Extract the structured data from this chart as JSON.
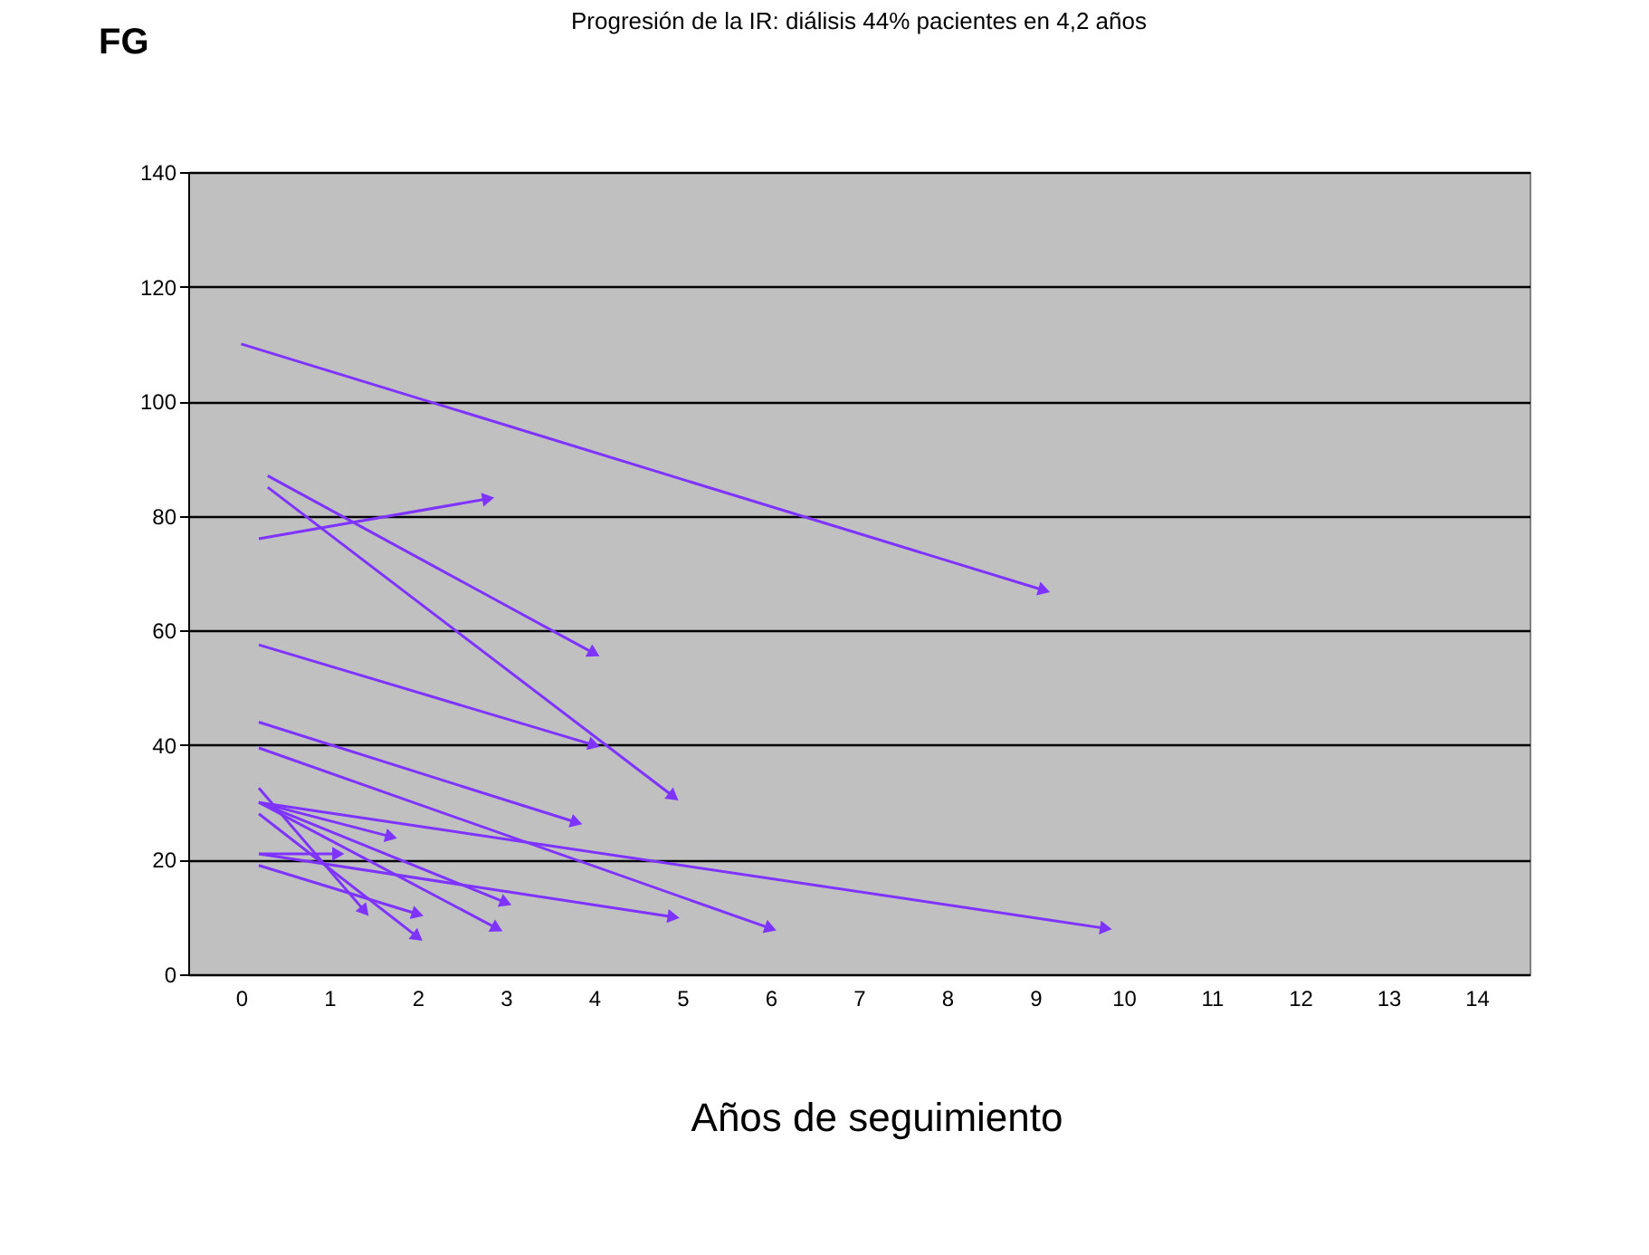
{
  "chart_data": {
    "type": "line",
    "title": "Progresión de la IR: diálisis 44% pacientes en 4,2 años",
    "ylabel": "FG",
    "xlabel": "Años de seguimiento",
    "xlim": [
      -0.6,
      14.6
    ],
    "xticks": [
      0,
      1,
      2,
      3,
      4,
      5,
      6,
      7,
      8,
      9,
      10,
      11,
      12,
      13,
      14
    ],
    "ylim": [
      0,
      140
    ],
    "yticks": [
      0,
      20,
      40,
      60,
      80,
      100,
      120,
      140
    ],
    "grid": "y",
    "legend": false,
    "marker": "triangle",
    "series": [
      {
        "color": "#7f33ff",
        "x": [
          0,
          9.1
        ],
        "values": [
          110,
          67
        ]
      },
      {
        "color": "#7f33ff",
        "x": [
          0.2,
          2.8
        ],
        "values": [
          76,
          83
        ]
      },
      {
        "color": "#7f33ff",
        "x": [
          0.3,
          4.0
        ],
        "values": [
          87,
          56
        ]
      },
      {
        "color": "#7f33ff",
        "x": [
          0.3,
          4.9
        ],
        "values": [
          85,
          31
        ]
      },
      {
        "color": "#7f33ff",
        "x": [
          0.2,
          4.0
        ],
        "values": [
          57.5,
          40
        ]
      },
      {
        "color": "#7f33ff",
        "x": [
          0.2,
          3.8
        ],
        "values": [
          44,
          26.5
        ]
      },
      {
        "color": "#7f33ff",
        "x": [
          0.2,
          6.0
        ],
        "values": [
          39.5,
          8
        ]
      },
      {
        "color": "#7f33ff",
        "x": [
          0.2,
          9.8
        ],
        "values": [
          30,
          8
        ]
      },
      {
        "color": "#7f33ff",
        "x": [
          0.2,
          1.7
        ],
        "values": [
          30,
          24
        ]
      },
      {
        "color": "#7f33ff",
        "x": [
          0.2,
          1.4
        ],
        "values": [
          32.5,
          11
        ]
      },
      {
        "color": "#7f33ff",
        "x": [
          0.2,
          2.0
        ],
        "values": [
          28,
          6.5
        ]
      },
      {
        "color": "#7f33ff",
        "x": [
          0.2,
          3.0
        ],
        "values": [
          30,
          12.5
        ]
      },
      {
        "color": "#7f33ff",
        "x": [
          0.2,
          2.9
        ],
        "values": [
          30,
          8
        ]
      },
      {
        "color": "#7f33ff",
        "x": [
          0.2,
          1.1
        ],
        "values": [
          21,
          21
        ]
      },
      {
        "color": "#7f33ff",
        "x": [
          0.2,
          2.0
        ],
        "values": [
          19,
          10.5
        ]
      },
      {
        "color": "#7f33ff",
        "x": [
          0.2,
          4.9
        ],
        "values": [
          21,
          10
        ]
      }
    ]
  }
}
